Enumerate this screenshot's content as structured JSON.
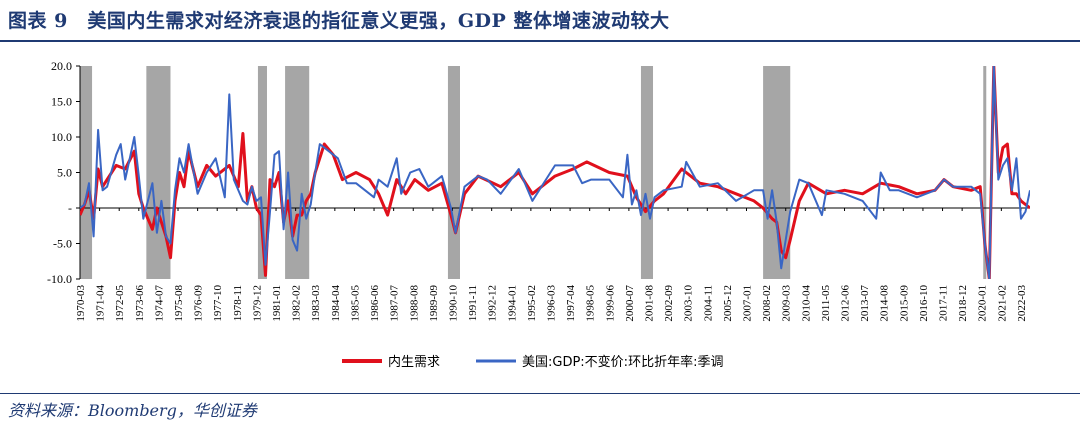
{
  "header": {
    "title": "图表 9　美国内生需求对经济衰退的指征意义更强，GDP 整体增速波动较大"
  },
  "footer": {
    "source": "资料来源：Bloomberg，华创证券"
  },
  "colors": {
    "title": "#1f3a73",
    "series_domestic": "#e0101c",
    "series_gdp": "#3a66c4",
    "recession_band": "#a6a6a6"
  },
  "chart_data": {
    "type": "line",
    "title": "美国内生需求对经济衰退的指征意义更强，GDP 整体增速波动较大",
    "xlabel": "",
    "ylabel": "",
    "ylim": [
      -10,
      20
    ],
    "yticks": [
      "20.0",
      "15.0",
      "10.0",
      "5.0",
      "-",
      "-5.0",
      "-10.0"
    ],
    "yticks_values": [
      20,
      15,
      10,
      5,
      0,
      -5,
      -10
    ],
    "x_start": "1970-03",
    "x_end": "2022-09",
    "x_tick_labels": [
      "1970-03",
      "1971-04",
      "1972-05",
      "1973-06",
      "1974-07",
      "1975-08",
      "1976-09",
      "1977-10",
      "1978-11",
      "1979-12",
      "1981-01",
      "1982-02",
      "1983-03",
      "1984-04",
      "1985-05",
      "1986-06",
      "1987-07",
      "1988-08",
      "1989-09",
      "1990-10",
      "1991-11",
      "1992-12",
      "1994-01",
      "1995-02",
      "1996-03",
      "1997-04",
      "1998-05",
      "1999-06",
      "2000-07",
      "2001-08",
      "2002-09",
      "2003-10",
      "2004-11",
      "2005-12",
      "2007-01",
      "2008-02",
      "2009-03",
      "2010-04",
      "2011-05",
      "2012-06",
      "2013-07",
      "2014-08",
      "2015-09",
      "2016-10",
      "2017-11",
      "2018-12",
      "2020-01",
      "2021-02",
      "2022-03"
    ],
    "recessions": [
      [
        "1970-01",
        "1970-11"
      ],
      [
        "1973-11",
        "1975-03"
      ],
      [
        "1980-01",
        "1980-07"
      ],
      [
        "1981-07",
        "1982-11"
      ],
      [
        "1990-07",
        "1991-03"
      ],
      [
        "2001-03",
        "2001-11"
      ],
      [
        "2007-12",
        "2009-06"
      ],
      [
        "2020-02",
        "2020-04"
      ]
    ],
    "legend_position": "bottom-center",
    "series": [
      {
        "name": "内生需求",
        "anchors": [
          [
            "1970-03",
            -1
          ],
          [
            "1970-06",
            0.5
          ],
          [
            "1970-09",
            2.5
          ],
          [
            "1970-12",
            -1.5
          ],
          [
            "1971-03",
            5.5
          ],
          [
            "1971-06",
            3
          ],
          [
            "1971-09",
            4
          ],
          [
            "1972-03",
            6
          ],
          [
            "1972-09",
            5.5
          ],
          [
            "1973-03",
            8
          ],
          [
            "1973-06",
            2
          ],
          [
            "1973-09",
            0
          ],
          [
            "1974-03",
            -3
          ],
          [
            "1974-06",
            0
          ],
          [
            "1974-09",
            -2
          ],
          [
            "1974-12",
            -4
          ],
          [
            "1975-03",
            -7
          ],
          [
            "1975-06",
            1
          ],
          [
            "1975-09",
            5
          ],
          [
            "1975-12",
            3
          ],
          [
            "1976-03",
            8
          ],
          [
            "1976-09",
            3
          ],
          [
            "1977-03",
            6
          ],
          [
            "1977-09",
            4.5
          ],
          [
            "1978-06",
            6
          ],
          [
            "1978-12",
            3
          ],
          [
            "1979-03",
            10.5
          ],
          [
            "1979-06",
            1
          ],
          [
            "1979-09",
            3
          ],
          [
            "1979-12",
            0
          ],
          [
            "1980-03",
            -1
          ],
          [
            "1980-06",
            -9.5
          ],
          [
            "1980-09",
            4
          ],
          [
            "1980-12",
            3
          ],
          [
            "1981-03",
            5
          ],
          [
            "1981-06",
            -2
          ],
          [
            "1981-09",
            1
          ],
          [
            "1981-12",
            -4
          ],
          [
            "1982-03",
            -1
          ],
          [
            "1982-06",
            -1
          ],
          [
            "1982-09",
            1
          ],
          [
            "1982-12",
            2
          ],
          [
            "1983-03",
            5
          ],
          [
            "1983-09",
            9
          ],
          [
            "1984-03",
            7.5
          ],
          [
            "1984-09",
            4
          ],
          [
            "1985-06",
            5
          ],
          [
            "1986-03",
            4
          ],
          [
            "1986-09",
            2
          ],
          [
            "1987-03",
            -1
          ],
          [
            "1987-09",
            4
          ],
          [
            "1988-03",
            2
          ],
          [
            "1988-09",
            4
          ],
          [
            "1989-06",
            2.5
          ],
          [
            "1990-03",
            3.5
          ],
          [
            "1990-09",
            -1
          ],
          [
            "1990-12",
            -3.5
          ],
          [
            "1991-06",
            2
          ],
          [
            "1992-03",
            4.5
          ],
          [
            "1993-06",
            3
          ],
          [
            "1994-06",
            5
          ],
          [
            "1995-03",
            2
          ],
          [
            "1996-06",
            4.5
          ],
          [
            "1997-06",
            5.5
          ],
          [
            "1998-03",
            6.5
          ],
          [
            "1999-06",
            5
          ],
          [
            "2000-06",
            4.5
          ],
          [
            "2000-12",
            1.5
          ],
          [
            "2001-06",
            -0.5
          ],
          [
            "2001-12",
            1
          ],
          [
            "2002-06",
            2
          ],
          [
            "2003-06",
            5.5
          ],
          [
            "2004-06",
            3.5
          ],
          [
            "2005-06",
            3
          ],
          [
            "2006-06",
            2
          ],
          [
            "2007-06",
            1
          ],
          [
            "2007-12",
            0
          ],
          [
            "2008-06",
            -1.5
          ],
          [
            "2008-09",
            -2
          ],
          [
            "2008-12",
            -6
          ],
          [
            "2009-03",
            -7
          ],
          [
            "2009-06",
            -4.5
          ],
          [
            "2009-12",
            1
          ],
          [
            "2010-06",
            3.5
          ],
          [
            "2011-06",
            2
          ],
          [
            "2012-06",
            2.5
          ],
          [
            "2013-06",
            2
          ],
          [
            "2014-06",
            3.5
          ],
          [
            "2015-06",
            3
          ],
          [
            "2016-06",
            2
          ],
          [
            "2017-06",
            2.5
          ],
          [
            "2017-12",
            4
          ],
          [
            "2018-06",
            3
          ],
          [
            "2019-06",
            2.5
          ],
          [
            "2019-12",
            3
          ],
          [
            "2020-03",
            -5
          ],
          [
            "2020-06",
            -10
          ],
          [
            "2020-09",
            20
          ],
          [
            "2020-12",
            5
          ],
          [
            "2021-03",
            8.5
          ],
          [
            "2021-06",
            9
          ],
          [
            "2021-09",
            2
          ],
          [
            "2021-12",
            2
          ],
          [
            "2022-03",
            1
          ],
          [
            "2022-06",
            0.5
          ],
          [
            "2022-09",
            0
          ]
        ]
      },
      {
        "name": "美国:GDP:不变价:环比折年率:季调",
        "anchors": [
          [
            "1970-03",
            0
          ],
          [
            "1970-06",
            0.5
          ],
          [
            "1970-09",
            3.5
          ],
          [
            "1970-12",
            -4
          ],
          [
            "1971-03",
            11
          ],
          [
            "1971-06",
            2.5
          ],
          [
            "1971-09",
            3
          ],
          [
            "1972-03",
            7.5
          ],
          [
            "1972-06",
            9
          ],
          [
            "1972-09",
            4
          ],
          [
            "1972-12",
            7
          ],
          [
            "1973-03",
            10
          ],
          [
            "1973-06",
            4.5
          ],
          [
            "1973-09",
            -1.5
          ],
          [
            "1974-03",
            3.5
          ],
          [
            "1974-06",
            -3.5
          ],
          [
            "1974-09",
            1
          ],
          [
            "1974-12",
            -4
          ],
          [
            "1975-03",
            -5
          ],
          [
            "1975-06",
            2.5
          ],
          [
            "1975-09",
            7
          ],
          [
            "1975-12",
            5
          ],
          [
            "1976-03",
            9
          ],
          [
            "1976-09",
            2
          ],
          [
            "1977-03",
            5
          ],
          [
            "1977-09",
            7
          ],
          [
            "1978-03",
            1.5
          ],
          [
            "1978-06",
            16
          ],
          [
            "1978-09",
            4
          ],
          [
            "1979-03",
            1
          ],
          [
            "1979-06",
            0.5
          ],
          [
            "1979-09",
            3
          ],
          [
            "1979-12",
            1
          ],
          [
            "1980-03",
            1.5
          ],
          [
            "1980-06",
            -8
          ],
          [
            "1980-09",
            -0.5
          ],
          [
            "1980-12",
            7.5
          ],
          [
            "1981-03",
            8
          ],
          [
            "1981-06",
            -3
          ],
          [
            "1981-09",
            5
          ],
          [
            "1981-12",
            -4.5
          ],
          [
            "1982-03",
            -6
          ],
          [
            "1982-06",
            2
          ],
          [
            "1982-09",
            -1.5
          ],
          [
            "1982-12",
            0.5
          ],
          [
            "1983-03",
            5
          ],
          [
            "1983-06",
            9
          ],
          [
            "1983-12",
            8
          ],
          [
            "1984-06",
            7
          ],
          [
            "1984-12",
            3.5
          ],
          [
            "1985-06",
            3.5
          ],
          [
            "1986-06",
            1.5
          ],
          [
            "1986-09",
            4
          ],
          [
            "1987-03",
            3
          ],
          [
            "1987-09",
            7
          ],
          [
            "1987-12",
            2
          ],
          [
            "1988-06",
            5
          ],
          [
            "1988-12",
            5.5
          ],
          [
            "1989-06",
            3
          ],
          [
            "1990-03",
            4.5
          ],
          [
            "1990-09",
            0
          ],
          [
            "1990-12",
            -3.5
          ],
          [
            "1991-06",
            3
          ],
          [
            "1992-03",
            4.5
          ],
          [
            "1992-09",
            4
          ],
          [
            "1993-06",
            2
          ],
          [
            "1994-06",
            5.5
          ],
          [
            "1995-03",
            1
          ],
          [
            "1996-06",
            6
          ],
          [
            "1997-06",
            6
          ],
          [
            "1997-12",
            3.5
          ],
          [
            "1998-06",
            4
          ],
          [
            "1999-06",
            4
          ],
          [
            "2000-03",
            1.5
          ],
          [
            "2000-06",
            7.5
          ],
          [
            "2000-09",
            0.5
          ],
          [
            "2000-12",
            2.5
          ],
          [
            "2001-03",
            -1
          ],
          [
            "2001-06",
            2
          ],
          [
            "2001-09",
            -1.5
          ],
          [
            "2001-12",
            1.5
          ],
          [
            "2002-06",
            2.5
          ],
          [
            "2003-06",
            3
          ],
          [
            "2003-09",
            6.5
          ],
          [
            "2004-06",
            3
          ],
          [
            "2005-06",
            3.5
          ],
          [
            "2006-06",
            1
          ],
          [
            "2007-06",
            2.5
          ],
          [
            "2007-12",
            2.5
          ],
          [
            "2008-03",
            -1.5
          ],
          [
            "2008-06",
            2.5
          ],
          [
            "2008-09",
            -2
          ],
          [
            "2008-12",
            -8.5
          ],
          [
            "2009-03",
            -4.5
          ],
          [
            "2009-06",
            -0.5
          ],
          [
            "2009-12",
            4
          ],
          [
            "2010-06",
            3.5
          ],
          [
            "2011-03",
            -1
          ],
          [
            "2011-06",
            2.5
          ],
          [
            "2012-06",
            2
          ],
          [
            "2013-06",
            1
          ],
          [
            "2014-03",
            -1.5
          ],
          [
            "2014-06",
            5
          ],
          [
            "2014-12",
            2.5
          ],
          [
            "2015-06",
            2.5
          ],
          [
            "2016-06",
            1.5
          ],
          [
            "2017-06",
            2.5
          ],
          [
            "2017-12",
            4
          ],
          [
            "2018-06",
            3
          ],
          [
            "2019-06",
            3
          ],
          [
            "2019-12",
            2
          ],
          [
            "2020-03",
            -5
          ],
          [
            "2020-06",
            -10
          ],
          [
            "2020-09",
            20
          ],
          [
            "2020-12",
            4
          ],
          [
            "2021-03",
            6
          ],
          [
            "2021-06",
            7
          ],
          [
            "2021-09",
            2.5
          ],
          [
            "2021-12",
            7
          ],
          [
            "2022-03",
            -1.5
          ],
          [
            "2022-06",
            -0.5
          ],
          [
            "2022-09",
            2.5
          ]
        ]
      }
    ]
  }
}
